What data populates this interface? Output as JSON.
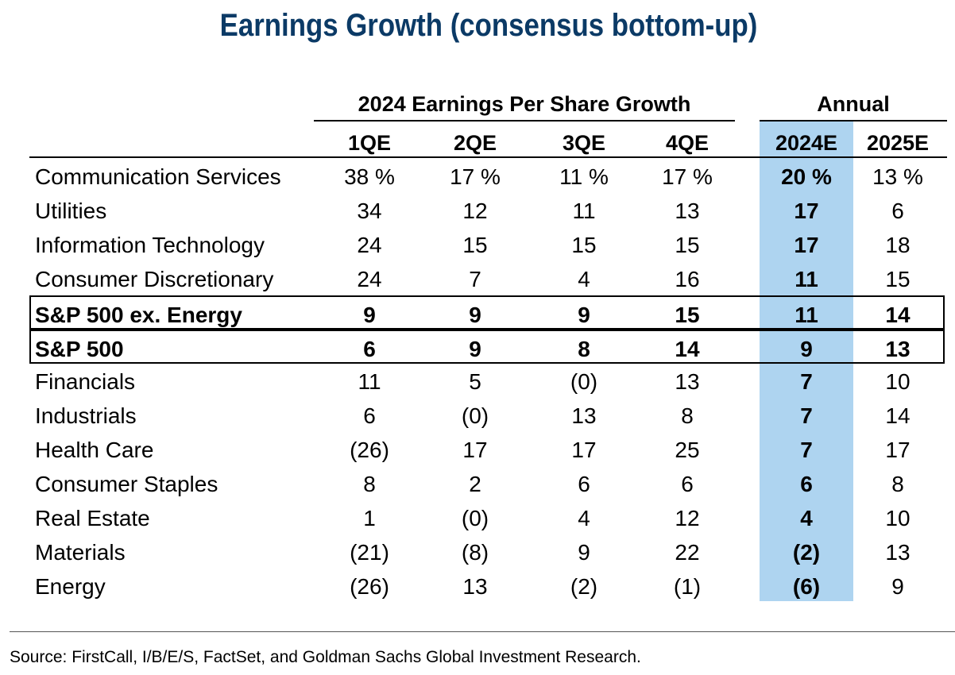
{
  "chart_data": {
    "type": "table",
    "title": "Earnings Growth (consensus bottom-up)",
    "group_headers": {
      "quarterly": "2024 Earnings Per Share Growth",
      "annual": "Annual"
    },
    "columns": [
      "1QE",
      "2QE",
      "3QE",
      "4QE",
      "2024E",
      "2025E"
    ],
    "highlight_column": "2024E",
    "highlight_color": "#aed4f0",
    "title_color": "#0b3a66",
    "rows": [
      {
        "name": "Communication Services",
        "cells": [
          "38 %",
          "17 %",
          "11 %",
          "17 %",
          "20 %",
          "13 %"
        ],
        "values": [
          38,
          17,
          11,
          17,
          20,
          13
        ],
        "bold": false,
        "boxed": false
      },
      {
        "name": "Utilities",
        "cells": [
          "34",
          "12",
          "11",
          "13",
          "17",
          "6"
        ],
        "values": [
          34,
          12,
          11,
          13,
          17,
          6
        ],
        "bold": false,
        "boxed": false
      },
      {
        "name": "Information Technology",
        "cells": [
          "24",
          "15",
          "15",
          "15",
          "17",
          "18"
        ],
        "values": [
          24,
          15,
          15,
          15,
          17,
          18
        ],
        "bold": false,
        "boxed": false
      },
      {
        "name": "Consumer Discretionary",
        "cells": [
          "24",
          "7",
          "4",
          "16",
          "11",
          "15"
        ],
        "values": [
          24,
          7,
          4,
          16,
          11,
          15
        ],
        "bold": false,
        "boxed": false
      },
      {
        "name": "S&P 500 ex. Energy",
        "cells": [
          "9",
          "9",
          "9",
          "15",
          "11",
          "14"
        ],
        "values": [
          9,
          9,
          9,
          15,
          11,
          14
        ],
        "bold": true,
        "boxed": true
      },
      {
        "name": "S&P 500",
        "cells": [
          "6",
          "9",
          "8",
          "14",
          "9",
          "13"
        ],
        "values": [
          6,
          9,
          8,
          14,
          9,
          13
        ],
        "bold": true,
        "boxed": true
      },
      {
        "name": "Financials",
        "cells": [
          "11",
          "5",
          "(0)",
          "13",
          "7",
          "10"
        ],
        "values": [
          11,
          5,
          0,
          13,
          7,
          10
        ],
        "bold": false,
        "boxed": false
      },
      {
        "name": "Industrials",
        "cells": [
          "6",
          "(0)",
          "13",
          "8",
          "7",
          "14"
        ],
        "values": [
          6,
          0,
          13,
          8,
          7,
          14
        ],
        "bold": false,
        "boxed": false
      },
      {
        "name": "Health Care",
        "cells": [
          "(26)",
          "17",
          "17",
          "25",
          "7",
          "17"
        ],
        "values": [
          -26,
          17,
          17,
          25,
          7,
          17
        ],
        "bold": false,
        "boxed": false
      },
      {
        "name": "Consumer Staples",
        "cells": [
          "8",
          "2",
          "6",
          "6",
          "6",
          "8"
        ],
        "values": [
          8,
          2,
          6,
          6,
          6,
          8
        ],
        "bold": false,
        "boxed": false
      },
      {
        "name": "Real Estate",
        "cells": [
          "1",
          "(0)",
          "4",
          "12",
          "4",
          "10"
        ],
        "values": [
          1,
          0,
          4,
          12,
          4,
          10
        ],
        "bold": false,
        "boxed": false
      },
      {
        "name": "Materials",
        "cells": [
          "(21)",
          "(8)",
          "9",
          "22",
          "(2)",
          "13"
        ],
        "values": [
          -21,
          -8,
          9,
          22,
          -2,
          13
        ],
        "bold": false,
        "boxed": false
      },
      {
        "name": "Energy",
        "cells": [
          "(26)",
          "13",
          "(2)",
          "(1)",
          "(6)",
          "9"
        ],
        "values": [
          -26,
          13,
          -2,
          -1,
          -6,
          9
        ],
        "bold": false,
        "boxed": false
      }
    ]
  },
  "source": "Source: FirstCall, I/B/E/S, FactSet, and Goldman Sachs Global Investment Research."
}
